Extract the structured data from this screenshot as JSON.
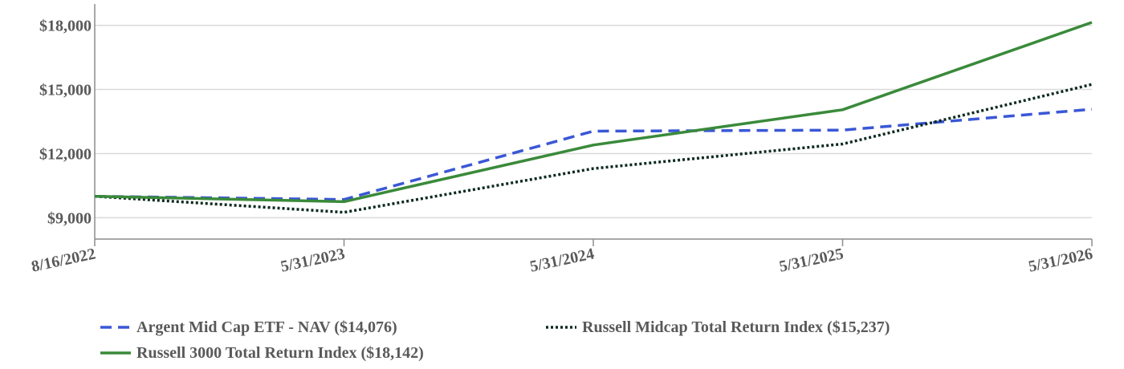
{
  "chart_data": {
    "type": "line",
    "title": "",
    "xlabel": "",
    "ylabel": "",
    "categories": [
      "8/16/2022",
      "5/31/2023",
      "5/31/2024",
      "5/31/2025",
      "5/31/2026"
    ],
    "ylim": [
      8000,
      19000
    ],
    "yticks": [
      9000,
      12000,
      15000,
      18000
    ],
    "ytick_labels": [
      "$9,000",
      "$12,000",
      "$15,000",
      "$18,000"
    ],
    "grid": true,
    "legend_position": "bottom",
    "series": [
      {
        "name": "Argent Mid Cap ETF - NAV ($14,076)",
        "values": [
          10000,
          9850,
          13050,
          13100,
          14076
        ],
        "color": "#3a57d6",
        "style": "dashed"
      },
      {
        "name": "Russell Midcap Total Return Index ($15,237)",
        "values": [
          10000,
          9250,
          11300,
          12450,
          15237
        ],
        "color": "#0d2a1e",
        "style": "dotted"
      },
      {
        "name": "Russell 3000 Total Return Index ($18,142)",
        "values": [
          10000,
          9750,
          12400,
          14050,
          18142
        ],
        "color": "#3a8a3a",
        "style": "solid"
      }
    ]
  }
}
